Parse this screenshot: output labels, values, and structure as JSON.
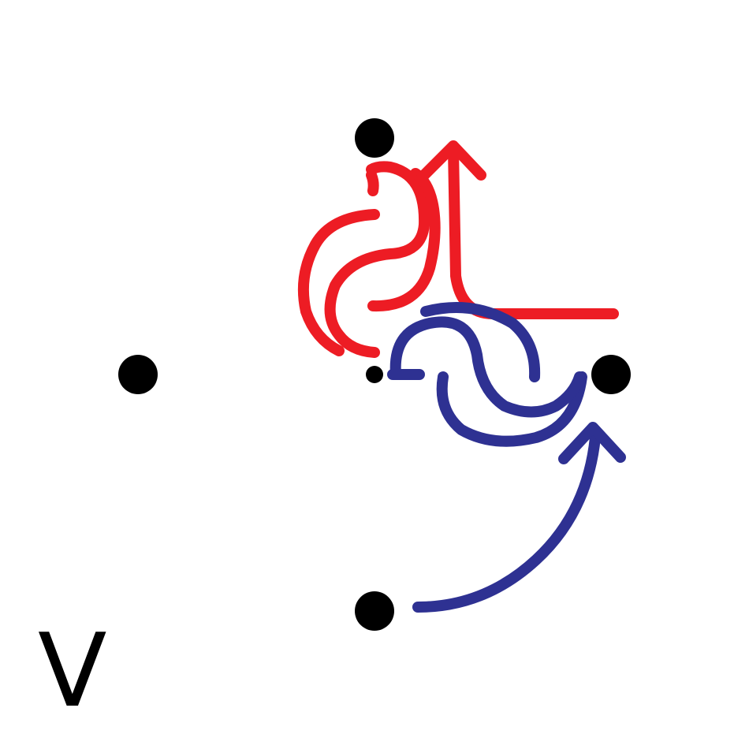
{
  "diagram": {
    "label": "V",
    "colors": {
      "background": "#ffffff",
      "nodes": "#000000",
      "red_path": "#ed1c24",
      "blue_path": "#2e3192"
    },
    "nodes": [
      "top",
      "left",
      "right",
      "bottom",
      "center"
    ],
    "paths": [
      "red-path",
      "blue-path"
    ]
  }
}
